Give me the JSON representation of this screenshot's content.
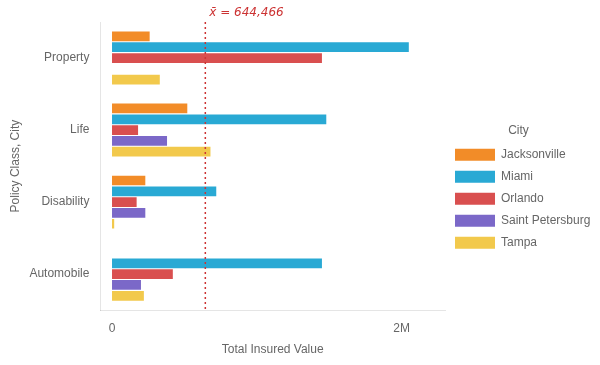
{
  "chart_data": {
    "type": "bar",
    "orientation": "horizontal",
    "categories": [
      "Automobile",
      "Disability",
      "Life",
      "Property"
    ],
    "series": [
      {
        "name": "Jacksonville",
        "color": "#F28C28",
        "values": [
          0,
          230000,
          520000,
          260000
        ]
      },
      {
        "name": "Miami",
        "color": "#29A9D4",
        "values": [
          1450000,
          720000,
          1480000,
          2050000
        ]
      },
      {
        "name": "Orlando",
        "color": "#D94F4F",
        "values": [
          420000,
          170000,
          180000,
          1450000
        ]
      },
      {
        "name": "Saint Petersburg",
        "color": "#7B68C8",
        "values": [
          200000,
          230000,
          380000,
          0
        ]
      },
      {
        "name": "Tampa",
        "color": "#F2C94C",
        "values": [
          220000,
          15000,
          680000,
          330000
        ]
      }
    ],
    "xlabel": "Total Insured Value",
    "ylabel": "Policy Class, City",
    "xlim": [
      -80000,
      2300000
    ],
    "xticks": [
      0,
      {
        "value": 2000000,
        "label": "2M"
      }
    ],
    "annotations": [
      {
        "text": "x̄ = 644,466",
        "x": 644466,
        "color": "#cc3333"
      }
    ],
    "legend": "right",
    "legend_title": "City",
    "grid": false
  }
}
